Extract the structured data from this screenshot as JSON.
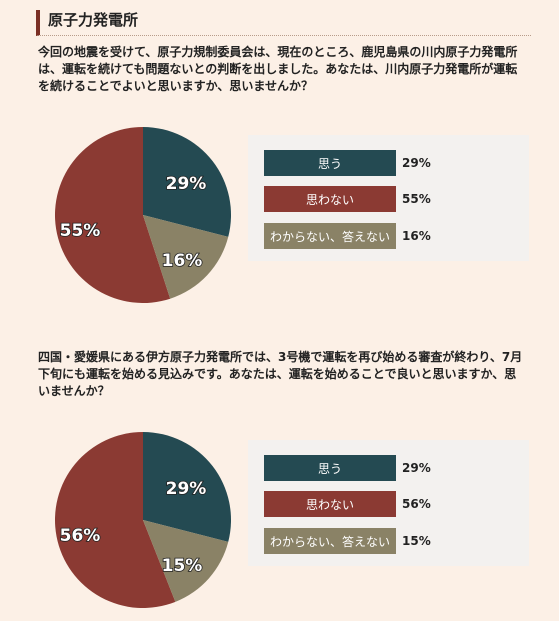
{
  "header": {
    "title": "原子力発電所"
  },
  "colors": {
    "think": "#244a52",
    "not_think": "#8b3a33",
    "unsure": "#8a8266"
  },
  "chart_data": [
    {
      "type": "pie",
      "question": "今回の地震を受けて、原子力規制委員会は、現在のところ、鹿児島県の川内原子力発電所は、運転を続けても問題ないとの判断を出しました。あなたは、川内原子力発電所が運転を続けることでよいと思いますか、思いませんか？",
      "labels": [
        "思う",
        "思わない",
        "わからない、答えない"
      ],
      "values": [
        29,
        55,
        16
      ],
      "value_labels": [
        "29%",
        "55%",
        "16%"
      ],
      "slice_labels": [
        "29%",
        "55%",
        "16%"
      ]
    },
    {
      "type": "pie",
      "question": "四国・愛媛県にある伊方原子力発電所では、3号機で運転を再び始める審査が終わり、7月下旬にも運転を始める見込みです。あなたは、運転を始めることで良いと思いますか、思いませんか？",
      "labels": [
        "思う",
        "思わない",
        "わからない、答えない"
      ],
      "values": [
        29,
        56,
        15
      ],
      "value_labels": [
        "29%",
        "56%",
        "15%"
      ],
      "slice_labels": [
        "29%",
        "56%",
        "15%"
      ]
    }
  ]
}
